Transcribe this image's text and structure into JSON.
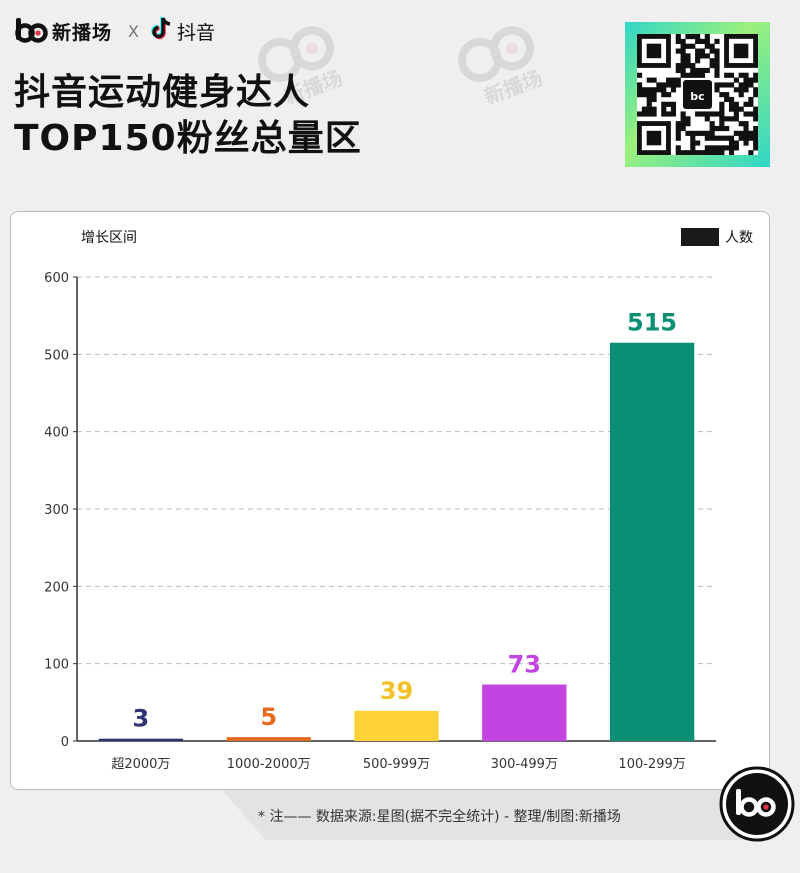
{
  "header": {
    "brand_logo_text": "bc",
    "brand_name": "新播场",
    "separator": "X",
    "partner_name": "抖音"
  },
  "title": {
    "line1": "抖音运动健身达人",
    "line2": "TOP150粉丝总量区"
  },
  "watermark": "新播场",
  "footer": {
    "note": "* 注—— 数据来源:星图(据不完全统计)     -     整理/制图:新播场"
  },
  "colors": {
    "background": "#efefef",
    "card": "#ffffff",
    "grid": "#bdbdbd",
    "axis": "#333333"
  },
  "chart_data": {
    "type": "bar",
    "title": "",
    "xlabel": "",
    "ylabel": "增长区间",
    "legend": {
      "label": "人数",
      "position": "top-right",
      "swatch_color": "#1a1a1a"
    },
    "categories": [
      "超2000万",
      "1000-2000万",
      "500-999万",
      "300-499万",
      "100-299万"
    ],
    "values": [
      3,
      5,
      39,
      73,
      515
    ],
    "bar_colors": [
      "#2f3475",
      "#e86a1e",
      "#fdd337",
      "#c344e0",
      "#0a8f75"
    ],
    "label_colors": [
      "#2f3475",
      "#e86a1e",
      "#f2c228",
      "#c344e0",
      "#0a8f75"
    ],
    "ylim": [
      0,
      600
    ],
    "yticks": [
      0,
      100,
      200,
      300,
      400,
      500,
      600
    ],
    "grid": true
  }
}
